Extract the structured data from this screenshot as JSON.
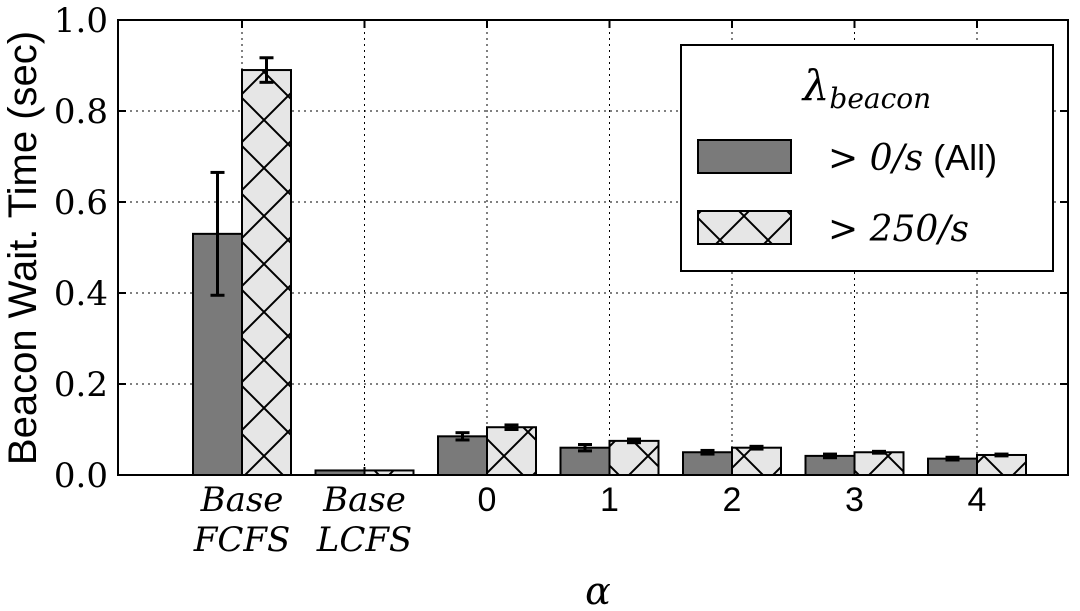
{
  "chart_data": {
    "type": "bar",
    "ylabel": "Beacon Wait. Time (sec)",
    "xlabel": "α",
    "ylim": [
      0,
      1.0
    ],
    "yticks": [
      "0.0",
      "0.2",
      "0.4",
      "0.6",
      "0.8",
      "1.0"
    ],
    "grid": true,
    "categories": [
      {
        "lines": [
          "Base",
          "FCFS"
        ],
        "math": true
      },
      {
        "lines": [
          "Base",
          "LCFS"
        ],
        "math": true
      },
      {
        "lines": [
          "0"
        ],
        "math": false
      },
      {
        "lines": [
          "1"
        ],
        "math": false
      },
      {
        "lines": [
          "2"
        ],
        "math": false
      },
      {
        "lines": [
          "3"
        ],
        "math": false
      },
      {
        "lines": [
          "4"
        ],
        "math": false
      }
    ],
    "series": [
      {
        "name": "> 0/s (All)",
        "color": "#7a7a7a",
        "hatch": false,
        "values": [
          0.53,
          0.01,
          0.085,
          0.06,
          0.05,
          0.042,
          0.036
        ],
        "errors": [
          0.135,
          0.0,
          0.008,
          0.007,
          0.004,
          0.004,
          0.003
        ]
      },
      {
        "name": "> 250/s",
        "color": "#e6e6e6",
        "hatch": true,
        "values": [
          0.89,
          0.01,
          0.105,
          0.075,
          0.06,
          0.05,
          0.044
        ],
        "errors": [
          0.027,
          0.0,
          0.005,
          0.004,
          0.003,
          0.002,
          0.002
        ]
      }
    ],
    "legend": {
      "title": "λbeacon",
      "title_main": "λ",
      "title_sub": "beacon",
      "placement": "top-right",
      "entries": [
        {
          "math": "> 0/s",
          "text": " (All)"
        },
        {
          "math": "> 250/s",
          "text": ""
        }
      ]
    }
  }
}
